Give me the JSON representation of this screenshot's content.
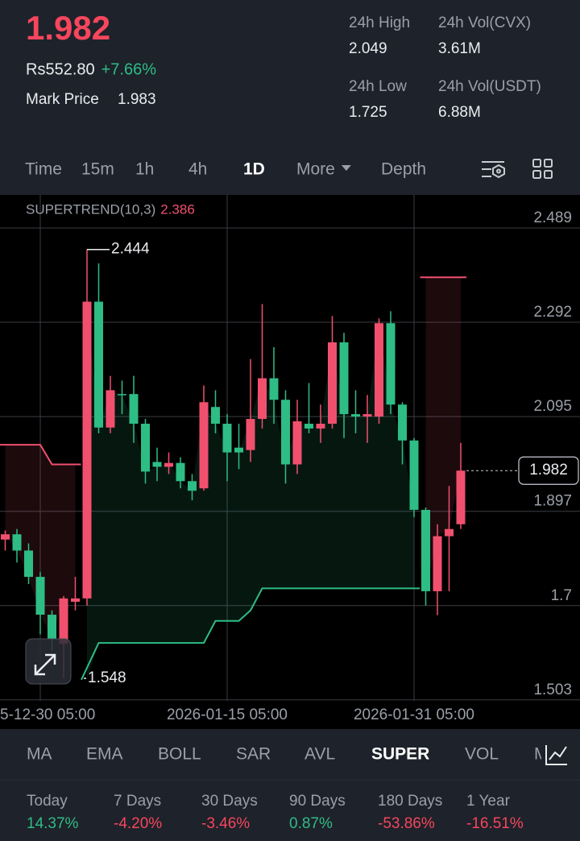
{
  "header": {
    "price": "1.982",
    "fiat_price": "Rs552.80",
    "change": "+7.66%",
    "mark_label": "Mark Price",
    "mark_price": "1.983",
    "stats": [
      {
        "label": "24h High",
        "value": "2.049"
      },
      {
        "label": "24h Vol(CVX)",
        "value": "3.61M"
      },
      {
        "label": "24h Low",
        "value": "1.725"
      },
      {
        "label": "24h Vol(USDT)",
        "value": "6.88M"
      }
    ]
  },
  "toolbar": {
    "tabs": [
      "Time",
      "15m",
      "1h",
      "4h",
      "1D",
      "More",
      "Depth"
    ],
    "active": 4
  },
  "chart_data": {
    "type": "candlestick",
    "indicator": "SUPERTREND(10,3)",
    "up_color": "#f0506e",
    "down_color": "#2ebd85",
    "candles": [
      {
        "open": 1.838,
        "high": 1.857,
        "low": 1.815,
        "close": 1.849
      },
      {
        "open": 1.849,
        "high": 1.86,
        "low": 1.79,
        "close": 1.815
      },
      {
        "open": 1.815,
        "high": 1.83,
        "low": 1.745,
        "close": 1.76
      },
      {
        "open": 1.76,
        "high": 1.77,
        "low": 1.64,
        "close": 1.681
      },
      {
        "open": 1.681,
        "high": 1.69,
        "low": 1.605,
        "close": 1.631
      },
      {
        "open": 1.62,
        "high": 1.72,
        "low": 1.548,
        "close": 1.715
      },
      {
        "open": 1.708,
        "high": 1.76,
        "low": 1.69,
        "close": 1.715
      },
      {
        "open": 1.715,
        "high": 2.444,
        "low": 1.7,
        "close": 2.335
      },
      {
        "open": 2.335,
        "high": 2.415,
        "low": 2.06,
        "close": 2.072
      },
      {
        "open": 2.072,
        "high": 2.18,
        "low": 2.06,
        "close": 2.15
      },
      {
        "open": 2.142,
        "high": 2.17,
        "low": 2.1,
        "close": 2.14
      },
      {
        "open": 2.142,
        "high": 2.18,
        "low": 2.04,
        "close": 2.08
      },
      {
        "open": 2.08,
        "high": 2.09,
        "low": 1.955,
        "close": 1.98
      },
      {
        "open": 2.0,
        "high": 2.03,
        "low": 1.96,
        "close": 1.99
      },
      {
        "open": 1.99,
        "high": 2.02,
        "low": 1.975,
        "close": 1.998
      },
      {
        "open": 1.998,
        "high": 2.01,
        "low": 1.945,
        "close": 1.96
      },
      {
        "open": 1.96,
        "high": 1.975,
        "low": 1.92,
        "close": 1.94
      },
      {
        "open": 1.945,
        "high": 2.16,
        "low": 1.94,
        "close": 2.125
      },
      {
        "open": 2.115,
        "high": 2.15,
        "low": 2.06,
        "close": 2.08
      },
      {
        "open": 2.08,
        "high": 2.1,
        "low": 1.96,
        "close": 2.02
      },
      {
        "open": 2.03,
        "high": 2.08,
        "low": 1.985,
        "close": 2.02
      },
      {
        "open": 2.025,
        "high": 2.215,
        "low": 2.0,
        "close": 2.09
      },
      {
        "open": 2.09,
        "high": 2.33,
        "low": 2.07,
        "close": 2.175
      },
      {
        "open": 2.175,
        "high": 2.24,
        "low": 2.08,
        "close": 2.13
      },
      {
        "open": 2.13,
        "high": 2.15,
        "low": 1.955,
        "close": 1.995
      },
      {
        "open": 1.995,
        "high": 2.13,
        "low": 1.975,
        "close": 2.085
      },
      {
        "open": 2.08,
        "high": 2.165,
        "low": 2.06,
        "close": 2.07
      },
      {
        "open": 2.07,
        "high": 2.12,
        "low": 2.04,
        "close": 2.08
      },
      {
        "open": 2.08,
        "high": 2.305,
        "low": 2.07,
        "close": 2.25
      },
      {
        "open": 2.25,
        "high": 2.27,
        "low": 2.05,
        "close": 2.1
      },
      {
        "open": 2.1,
        "high": 2.15,
        "low": 2.06,
        "close": 2.095
      },
      {
        "open": 2.095,
        "high": 2.14,
        "low": 2.04,
        "close": 2.1
      },
      {
        "open": 2.095,
        "high": 2.3,
        "low": 2.08,
        "close": 2.29
      },
      {
        "open": 2.29,
        "high": 2.315,
        "low": 2.1,
        "close": 2.12
      },
      {
        "open": 2.12,
        "high": 2.125,
        "low": 1.995,
        "close": 2.045
      },
      {
        "open": 2.045,
        "high": 2.05,
        "low": 1.885,
        "close": 1.9
      },
      {
        "open": 1.9,
        "high": 1.905,
        "low": 1.7,
        "close": 1.73
      },
      {
        "open": 1.73,
        "high": 1.87,
        "low": 1.68,
        "close": 1.845
      },
      {
        "open": 1.845,
        "high": 1.95,
        "low": 1.73,
        "close": 1.86
      },
      {
        "open": 1.87,
        "high": 2.04,
        "low": 1.86,
        "close": 1.982
      }
    ],
    "supertrend_upper": [
      2.036,
      2.036,
      2.036,
      2.036,
      1.995,
      1.995,
      1.995,
      null,
      null,
      null,
      null,
      null,
      null,
      null,
      null,
      null,
      null,
      null,
      null,
      null,
      null,
      null,
      null,
      null,
      null,
      null,
      null,
      null,
      null,
      null,
      null,
      null,
      null,
      null,
      null,
      null,
      2.386,
      2.386,
      2.386,
      2.386
    ],
    "supertrend_lower": [
      null,
      null,
      null,
      null,
      null,
      null,
      null,
      1.545,
      1.622,
      1.622,
      1.622,
      1.622,
      1.622,
      1.622,
      1.622,
      1.622,
      1.622,
      1.622,
      1.668,
      1.668,
      1.668,
      1.69,
      1.736,
      1.736,
      1.736,
      1.736,
      1.736,
      1.736,
      1.736,
      1.736,
      1.736,
      1.736,
      1.736,
      1.736,
      1.736,
      1.736,
      null,
      null,
      null,
      null
    ],
    "ylim": [
      1.501,
      2.558
    ],
    "yticks": [
      2.489,
      2.292,
      2.095,
      1.897,
      1.7,
      1.503
    ],
    "xticks": [
      {
        "value": 3,
        "label": "5-12-30 05:00"
      },
      {
        "value": 19,
        "label": "2026-01-15 05:00"
      },
      {
        "value": 35,
        "label": "2026-01-31 05:00"
      }
    ],
    "grid": true
  },
  "indicators": {
    "tabs": [
      "MA",
      "EMA",
      "BOLL",
      "SAR",
      "AVL",
      "SUPER",
      "VOL",
      "MACD"
    ],
    "active": 5
  },
  "performance": [
    {
      "label": "Today",
      "value": "14.37%"
    },
    {
      "label": "7 Days",
      "value": "-4.20%"
    },
    {
      "label": "30 Days",
      "value": "-3.46%"
    },
    {
      "label": "90 Days",
      "value": "0.87%"
    },
    {
      "label": "180 Days",
      "value": "-53.86%"
    },
    {
      "label": "1 Year",
      "value": "-16.51%"
    }
  ]
}
